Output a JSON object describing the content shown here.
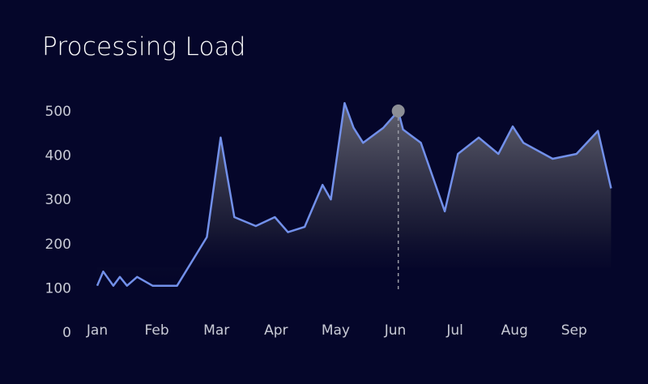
{
  "chart_data": {
    "type": "area",
    "title": "Processing Load",
    "xlabel": "",
    "ylabel": "",
    "ylim": [
      0,
      500
    ],
    "yticks": [
      "0",
      "100",
      "200",
      "300",
      "400",
      "500"
    ],
    "x_ticks": [
      "Jan",
      "Feb",
      "Mar",
      "Apr",
      "May",
      "Jun",
      "Jul",
      "Aug",
      "Sep"
    ],
    "grid": false,
    "legend": "none",
    "highlight_index": 30,
    "series": [
      {
        "x": [
          0.0,
          0.1,
          0.27,
          0.38,
          0.5,
          0.67,
          0.93,
          1.0,
          1.34,
          1.84,
          2.07,
          2.3,
          2.66,
          2.98,
          3.2,
          3.48,
          3.78,
          3.92,
          4.15,
          4.3,
          4.46,
          4.8,
          5.05,
          5.13,
          5.43,
          5.83,
          6.05,
          6.4,
          6.73,
          6.97,
          7.15,
          7.64,
          8.04,
          8.4,
          8.62
        ],
        "values": [
          105,
          137,
          105,
          125,
          105,
          125,
          105,
          105,
          105,
          215,
          440,
          260,
          240,
          260,
          226,
          238,
          333,
          300,
          518,
          462,
          428,
          462,
          500,
          458,
          428,
          273,
          403,
          440,
          403,
          465,
          428,
          392,
          403,
          455,
          325
        ]
      }
    ],
    "colors": {
      "background": "#05062a",
      "line": "#7290ea",
      "marker": "#8c8e95",
      "guide": "#9a9ca6"
    }
  }
}
